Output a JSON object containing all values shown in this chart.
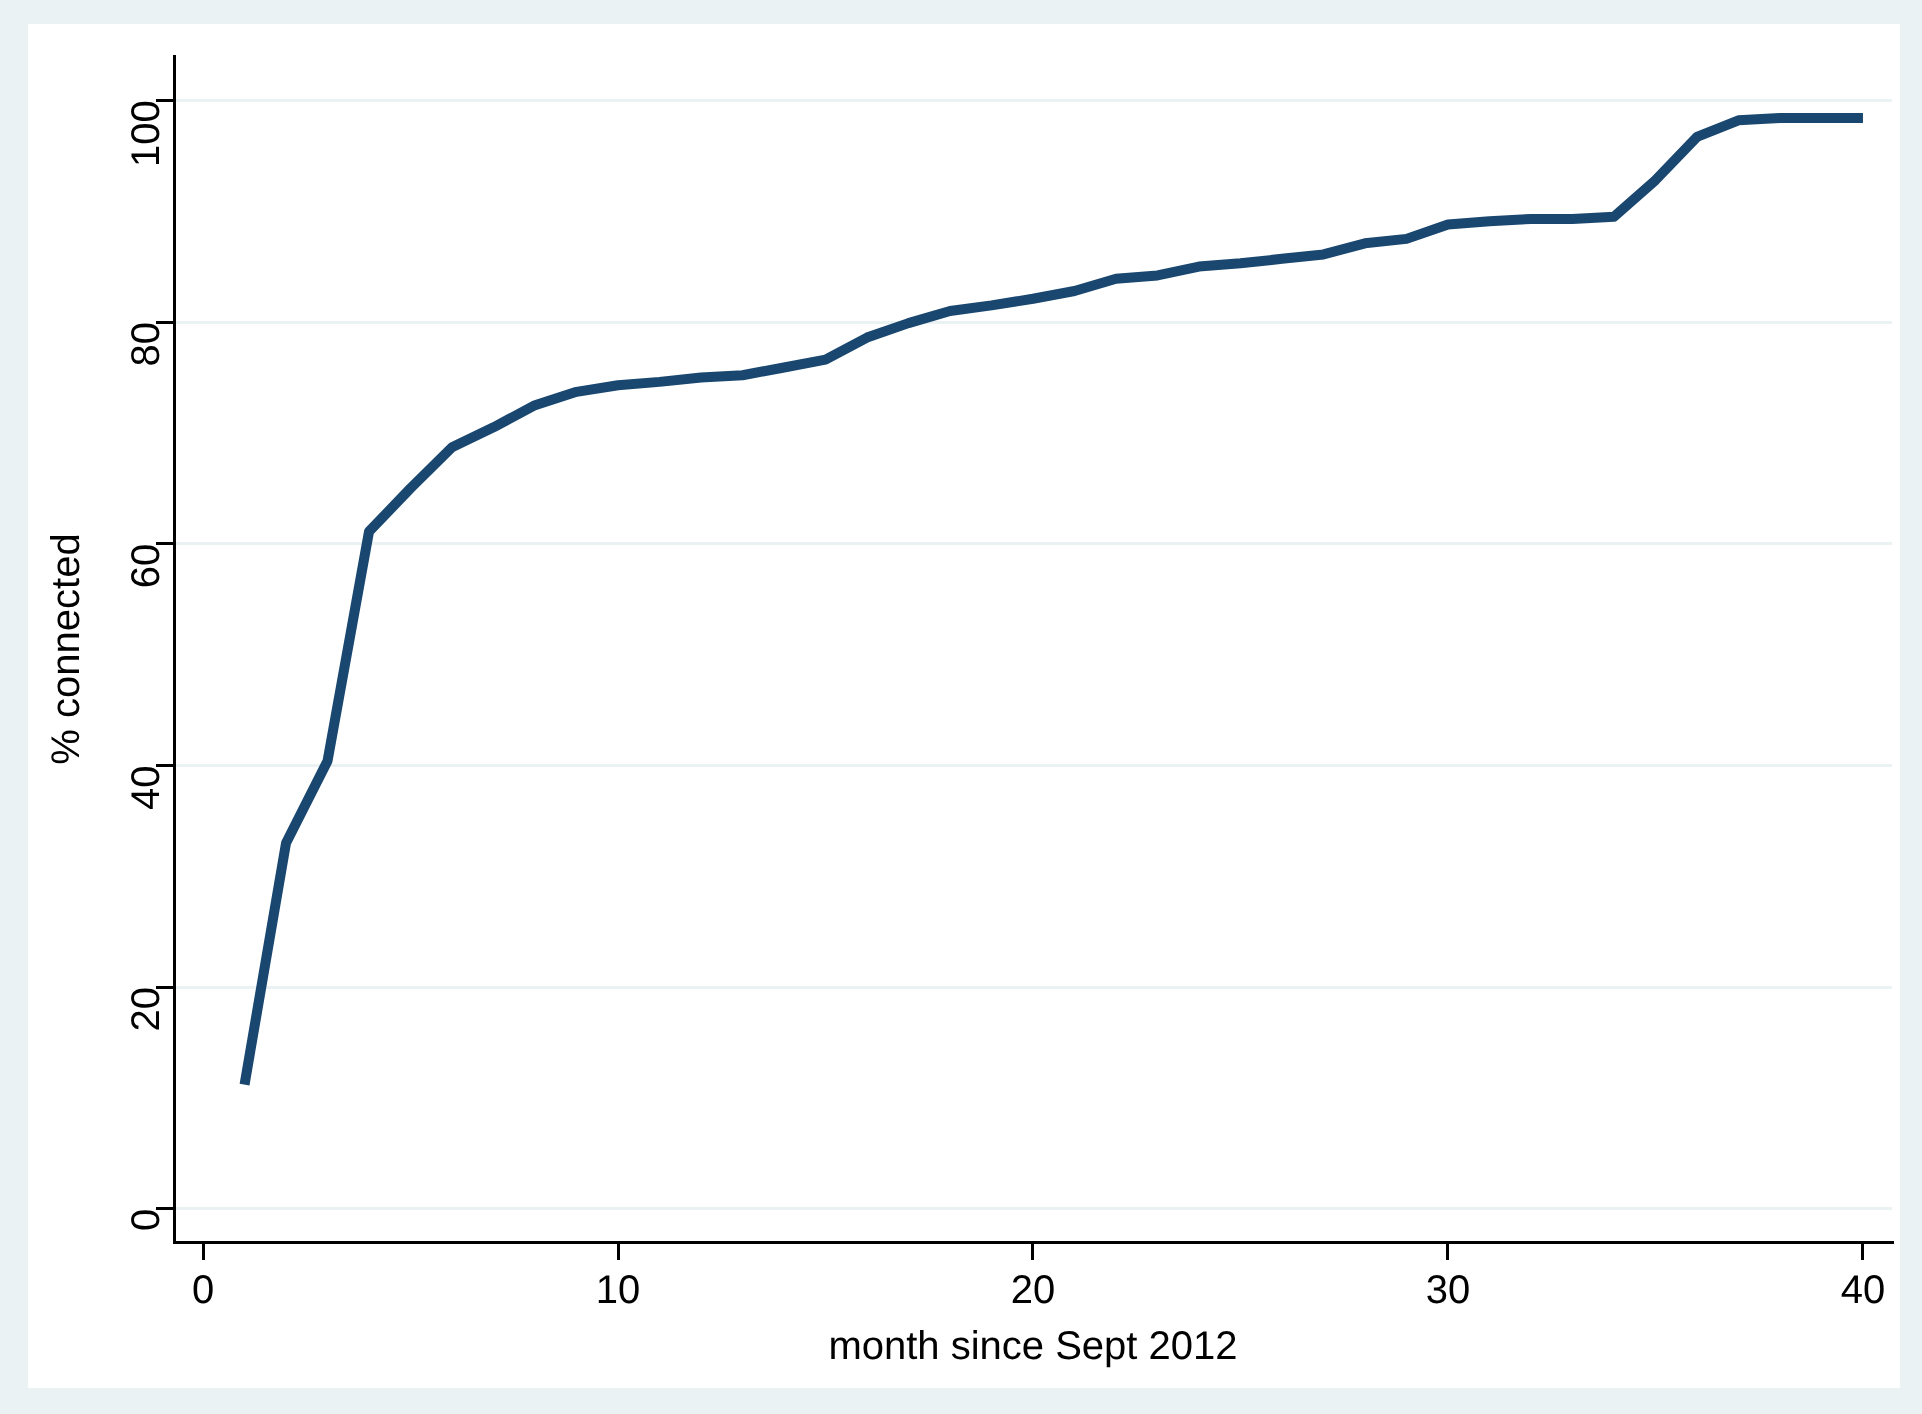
{
  "chart_data": {
    "type": "line",
    "xlabel": "month since Sept 2012",
    "ylabel": "% connected",
    "x": [
      1,
      2,
      3,
      4,
      5,
      6,
      7,
      8,
      9,
      10,
      11,
      12,
      13,
      14,
      15,
      16,
      17,
      18,
      19,
      20,
      21,
      22,
      23,
      24,
      25,
      26,
      27,
      28,
      29,
      30,
      31,
      32,
      33,
      34,
      35,
      36,
      37,
      38,
      39,
      40
    ],
    "series": [
      {
        "color": "#1a476f",
        "values": [
          11.2,
          33.0,
          40.4,
          61.1,
          65.0,
          68.7,
          70.5,
          72.5,
          73.7,
          74.3,
          74.6,
          75.0,
          75.2,
          75.9,
          76.6,
          78.6,
          79.9,
          81.0,
          81.5,
          82.1,
          82.8,
          83.9,
          84.2,
          85.0,
          85.3,
          85.7,
          86.1,
          87.1,
          87.5,
          88.8,
          89.1,
          89.3,
          89.3,
          89.5,
          92.8,
          96.7,
          98.2,
          98.4,
          98.4,
          98.4
        ]
      }
    ],
    "xlim": [
      -0.7,
      40.7
    ],
    "xticks": [
      0,
      10,
      20,
      30,
      40
    ],
    "ylim": [
      -3,
      104
    ],
    "yticks": [
      0,
      20,
      40,
      60,
      80,
      100
    ],
    "grid": "y",
    "legend": false,
    "marker": "none",
    "line_style": "solid"
  }
}
